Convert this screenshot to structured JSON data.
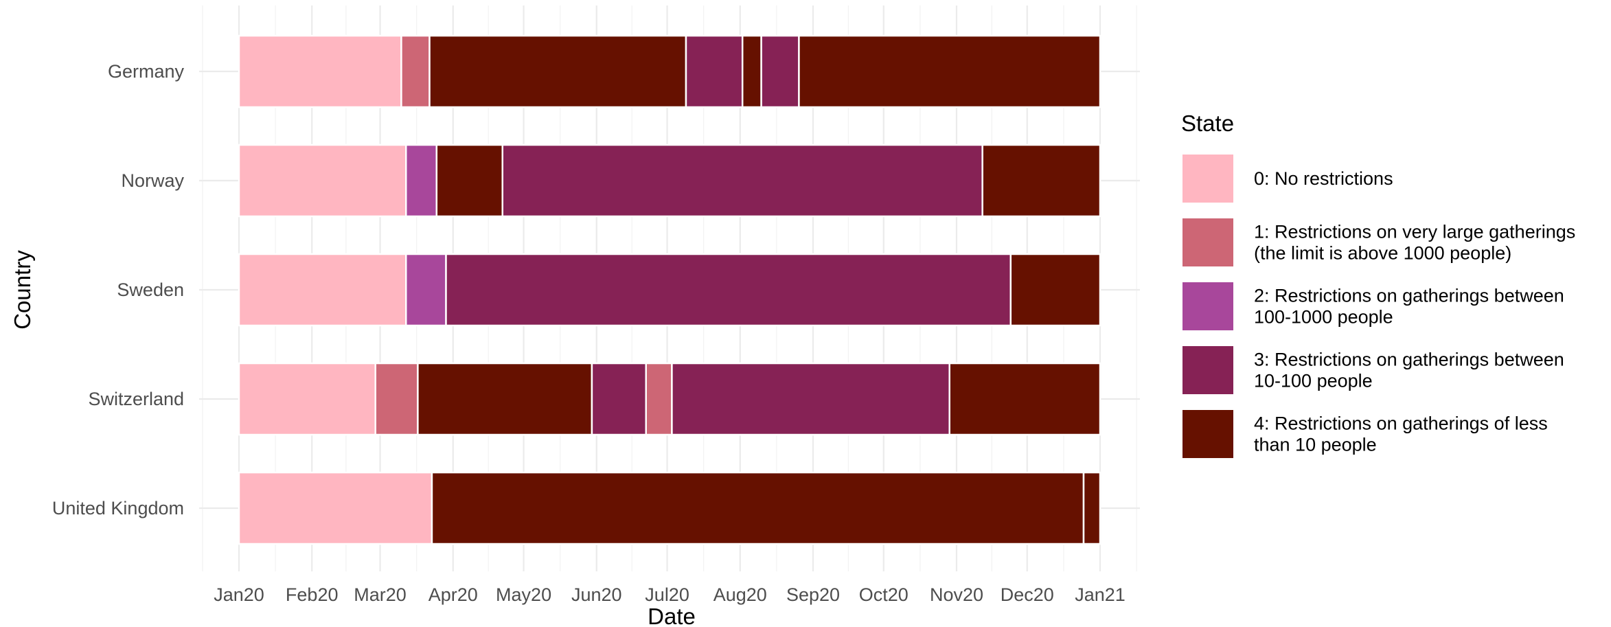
{
  "chart_data": {
    "type": "bar",
    "orientation": "horizontal-stacked-timeline",
    "xlabel": "Date",
    "ylabel": "Country",
    "xlim": [
      "2020-01-01",
      "2021-01-01"
    ],
    "x_ticks": [
      {
        "date": "2020-01-01",
        "label": "Jan20"
      },
      {
        "date": "2020-02-01",
        "label": "Feb20"
      },
      {
        "date": "2020-03-01",
        "label": "Mar20"
      },
      {
        "date": "2020-04-01",
        "label": "Apr20"
      },
      {
        "date": "2020-05-01",
        "label": "May20"
      },
      {
        "date": "2020-06-01",
        "label": "Jun20"
      },
      {
        "date": "2020-07-01",
        "label": "Jul20"
      },
      {
        "date": "2020-08-01",
        "label": "Aug20"
      },
      {
        "date": "2020-09-01",
        "label": "Sep20"
      },
      {
        "date": "2020-10-01",
        "label": "Oct20"
      },
      {
        "date": "2020-11-01",
        "label": "Nov20"
      },
      {
        "date": "2020-12-01",
        "label": "Dec20"
      },
      {
        "date": "2021-01-01",
        "label": "Jan21"
      }
    ],
    "grid": true,
    "legend": {
      "title": "State",
      "placement": "right",
      "entries": [
        {
          "state": 0,
          "lines": [
            "0:  No restrictions"
          ],
          "color": "#FFB6C1"
        },
        {
          "state": 1,
          "lines": [
            "1: Restrictions on very large gatherings",
            "(the limit is above 1000 people)"
          ],
          "color": "#CD6675"
        },
        {
          "state": 2,
          "lines": [
            "2: Restrictions on gatherings between",
            "100-1000 people"
          ],
          "color": "#A8479B"
        },
        {
          "state": 3,
          "lines": [
            "3: Restrictions on gatherings between",
            "10-100 people"
          ],
          "color": "#862255"
        },
        {
          "state": 4,
          "lines": [
            "4: Restrictions on gatherings of less",
            "than 10 people"
          ],
          "color": "#661100"
        }
      ]
    },
    "categories": [
      "Germany",
      "Norway",
      "Sweden",
      "Switzerland",
      "United Kingdom"
    ],
    "series": [
      {
        "country": "Germany",
        "segments": [
          {
            "start": "2020-01-01",
            "end": "2020-03-10",
            "state": 0
          },
          {
            "start": "2020-03-10",
            "end": "2020-03-22",
            "state": 1
          },
          {
            "start": "2020-03-22",
            "end": "2020-07-09",
            "state": 4
          },
          {
            "start": "2020-07-09",
            "end": "2020-08-02",
            "state": 3
          },
          {
            "start": "2020-08-02",
            "end": "2020-08-10",
            "state": 4
          },
          {
            "start": "2020-08-10",
            "end": "2020-08-26",
            "state": 3
          },
          {
            "start": "2020-08-26",
            "end": "2021-01-01",
            "state": 4
          }
        ]
      },
      {
        "country": "Norway",
        "segments": [
          {
            "start": "2020-01-01",
            "end": "2020-03-12",
            "state": 0
          },
          {
            "start": "2020-03-12",
            "end": "2020-03-25",
            "state": 2
          },
          {
            "start": "2020-03-25",
            "end": "2020-04-22",
            "state": 4
          },
          {
            "start": "2020-04-22",
            "end": "2020-11-12",
            "state": 3
          },
          {
            "start": "2020-11-12",
            "end": "2021-01-01",
            "state": 4
          }
        ]
      },
      {
        "country": "Sweden",
        "segments": [
          {
            "start": "2020-01-01",
            "end": "2020-03-12",
            "state": 0
          },
          {
            "start": "2020-03-12",
            "end": "2020-03-29",
            "state": 2
          },
          {
            "start": "2020-03-29",
            "end": "2020-11-24",
            "state": 3
          },
          {
            "start": "2020-11-24",
            "end": "2021-01-01",
            "state": 4
          }
        ]
      },
      {
        "country": "Switzerland",
        "segments": [
          {
            "start": "2020-01-01",
            "end": "2020-02-28",
            "state": 0
          },
          {
            "start": "2020-02-28",
            "end": "2020-03-17",
            "state": 1
          },
          {
            "start": "2020-03-17",
            "end": "2020-05-30",
            "state": 4
          },
          {
            "start": "2020-05-30",
            "end": "2020-06-22",
            "state": 3
          },
          {
            "start": "2020-06-22",
            "end": "2020-07-03",
            "state": 1
          },
          {
            "start": "2020-07-03",
            "end": "2020-10-29",
            "state": 3
          },
          {
            "start": "2020-10-29",
            "end": "2021-01-01",
            "state": 4
          }
        ]
      },
      {
        "country": "United Kingdom",
        "segments": [
          {
            "start": "2020-01-01",
            "end": "2020-03-23",
            "state": 0
          },
          {
            "start": "2020-03-23",
            "end": "2020-12-25",
            "state": 4
          },
          {
            "start": "2020-12-25",
            "end": "2021-01-01",
            "state": 4
          }
        ]
      }
    ]
  }
}
